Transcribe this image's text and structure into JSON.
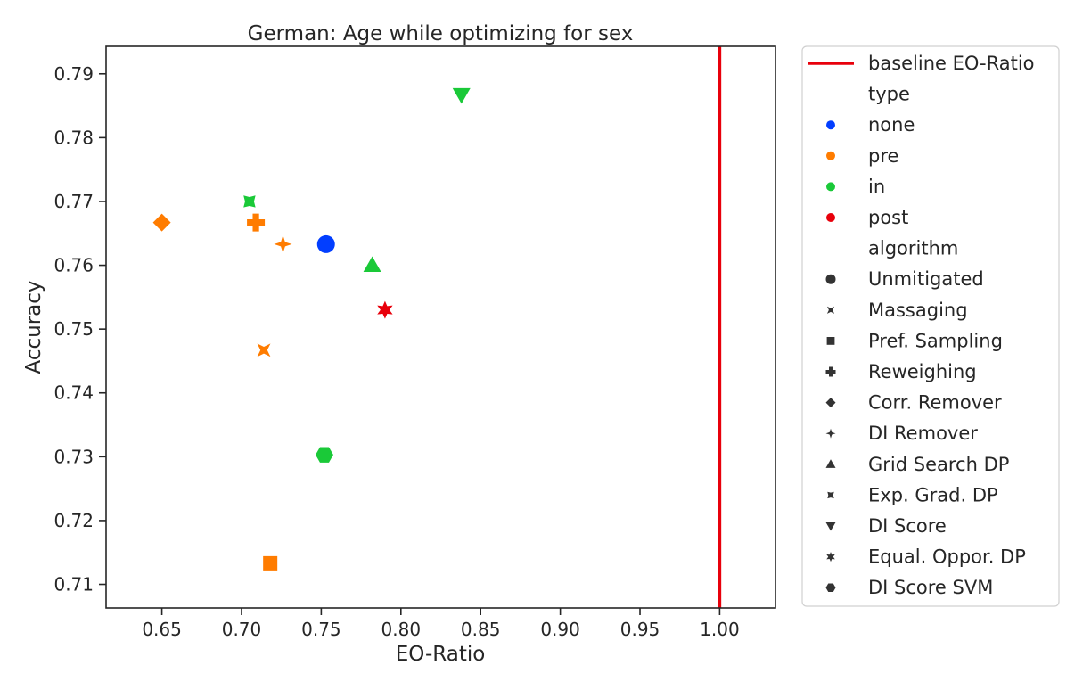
{
  "chart_data": {
    "type": "scatter",
    "title": "German: Age while optimizing for sex",
    "xlabel": "EO-Ratio",
    "ylabel": "Accuracy",
    "xlim": [
      0.615,
      1.035
    ],
    "ylim": [
      0.7063,
      0.7943
    ],
    "xticks": [
      "0.65",
      "0.70",
      "0.75",
      "0.80",
      "0.85",
      "0.90",
      "0.95",
      "1.00"
    ],
    "yticks": [
      "0.71",
      "0.72",
      "0.73",
      "0.74",
      "0.75",
      "0.76",
      "0.77",
      "0.78",
      "0.79"
    ],
    "baseline": {
      "label": "baseline EO-Ratio",
      "x": 1.0,
      "color": "#e8000b"
    },
    "type_colors": {
      "none": "#023eff",
      "pre": "#ff7c00",
      "in": "#1ac938",
      "post": "#e8000b"
    },
    "points": [
      {
        "algorithm": "Unmitigated",
        "type": "none",
        "marker": "circle",
        "x": 0.753,
        "y": 0.7633
      },
      {
        "algorithm": "Massaging",
        "type": "pre",
        "marker": "x",
        "x": 0.714,
        "y": 0.7467
      },
      {
        "algorithm": "Pref. Sampling",
        "type": "pre",
        "marker": "square",
        "x": 0.718,
        "y": 0.7133
      },
      {
        "algorithm": "Reweighing",
        "type": "pre",
        "marker": "plus",
        "x": 0.709,
        "y": 0.7667
      },
      {
        "algorithm": "Corr. Remover",
        "type": "pre",
        "marker": "diamond",
        "x": 0.65,
        "y": 0.7667
      },
      {
        "algorithm": "DI Remover",
        "type": "pre",
        "marker": "star4",
        "x": 0.726,
        "y": 0.7633
      },
      {
        "algorithm": "Grid Search DP",
        "type": "in",
        "marker": "triangle-up",
        "x": 0.782,
        "y": 0.76
      },
      {
        "algorithm": "Exp. Grad. DP",
        "type": "in",
        "marker": "pinwheel",
        "x": 0.705,
        "y": 0.77
      },
      {
        "algorithm": "DI Score",
        "type": "in",
        "marker": "triangle-down",
        "x": 0.838,
        "y": 0.7867
      },
      {
        "algorithm": "Equal. Oppor. DP",
        "type": "post",
        "marker": "star6",
        "x": 0.79,
        "y": 0.753
      },
      {
        "algorithm": "DI Score SVM",
        "type": "in",
        "marker": "hexagon",
        "x": 0.752,
        "y": 0.7303
      }
    ],
    "legend": {
      "placement": "outside-right",
      "type_title": "type",
      "types": [
        "none",
        "pre",
        "in",
        "post"
      ],
      "algorithm_title": "algorithm",
      "algorithms": [
        {
          "label": "Unmitigated",
          "marker": "circle"
        },
        {
          "label": "Massaging",
          "marker": "x"
        },
        {
          "label": "Pref. Sampling",
          "marker": "square"
        },
        {
          "label": "Reweighing",
          "marker": "plus"
        },
        {
          "label": "Corr. Remover",
          "marker": "diamond"
        },
        {
          "label": "DI Remover",
          "marker": "star4"
        },
        {
          "label": "Grid Search DP",
          "marker": "triangle-up"
        },
        {
          "label": "Exp. Grad. DP",
          "marker": "pinwheel"
        },
        {
          "label": "DI Score",
          "marker": "triangle-down"
        },
        {
          "label": "Equal. Oppor. DP",
          "marker": "star6"
        },
        {
          "label": "DI Score SVM",
          "marker": "hexagon"
        }
      ]
    },
    "grid": false
  }
}
